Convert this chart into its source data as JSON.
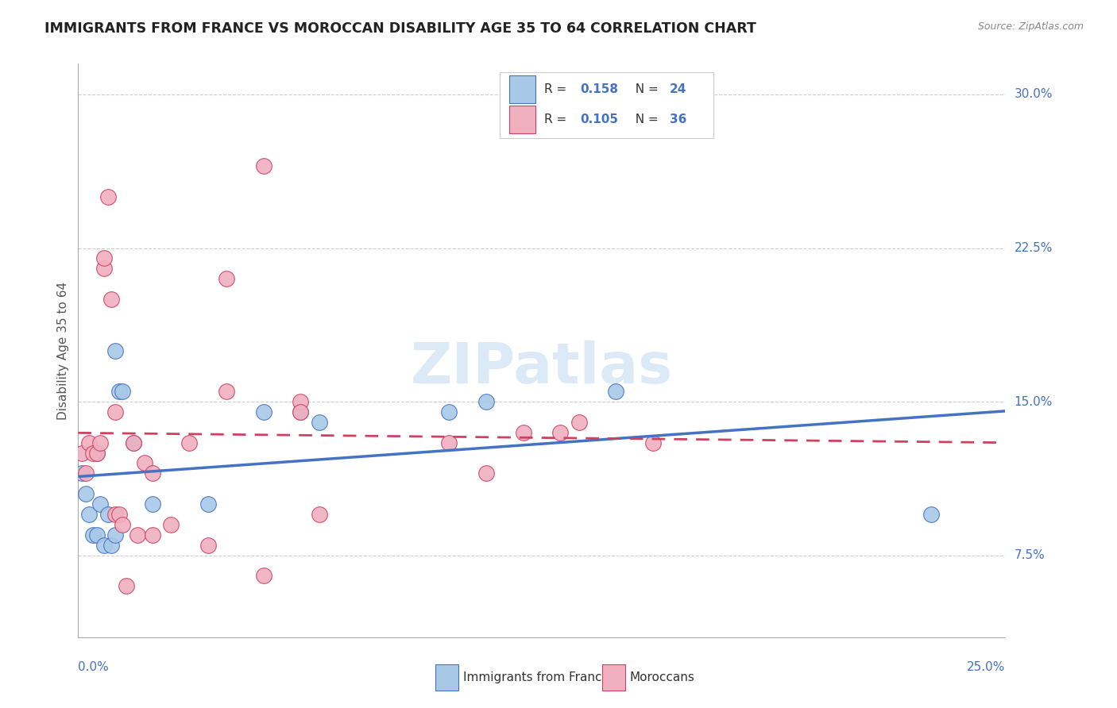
{
  "title": "IMMIGRANTS FROM FRANCE VS MOROCCAN DISABILITY AGE 35 TO 64 CORRELATION CHART",
  "source": "Source: ZipAtlas.com",
  "ylabel": "Disability Age 35 to 64",
  "ytick_labels": [
    "7.5%",
    "15.0%",
    "22.5%",
    "30.0%"
  ],
  "ytick_vals": [
    0.075,
    0.15,
    0.225,
    0.3
  ],
  "xtick_labels": [
    "0.0%",
    "25.0%"
  ],
  "xlim": [
    0.0,
    0.25
  ],
  "ylim": [
    0.035,
    0.315
  ],
  "color_france": "#a8c8e8",
  "color_morocco": "#f0b0c0",
  "color_france_line": "#4472c4",
  "color_morocco_line": "#d04060",
  "watermark": "ZIPatlas",
  "france_x": [
    0.001,
    0.002,
    0.003,
    0.004,
    0.005,
    0.005,
    0.006,
    0.007,
    0.008,
    0.009,
    0.01,
    0.01,
    0.011,
    0.012,
    0.015,
    0.02,
    0.035,
    0.05,
    0.06,
    0.065,
    0.1,
    0.11,
    0.145,
    0.23
  ],
  "france_y": [
    0.115,
    0.105,
    0.095,
    0.085,
    0.125,
    0.085,
    0.1,
    0.08,
    0.095,
    0.08,
    0.085,
    0.175,
    0.155,
    0.155,
    0.13,
    0.1,
    0.1,
    0.145,
    0.145,
    0.14,
    0.145,
    0.15,
    0.155,
    0.095
  ],
  "morocco_x": [
    0.001,
    0.002,
    0.003,
    0.004,
    0.005,
    0.006,
    0.007,
    0.007,
    0.008,
    0.009,
    0.01,
    0.01,
    0.011,
    0.012,
    0.013,
    0.015,
    0.016,
    0.018,
    0.02,
    0.02,
    0.025,
    0.03,
    0.035,
    0.04,
    0.04,
    0.05,
    0.05,
    0.06,
    0.06,
    0.065,
    0.1,
    0.11,
    0.12,
    0.13,
    0.135,
    0.155
  ],
  "morocco_y": [
    0.125,
    0.115,
    0.13,
    0.125,
    0.125,
    0.13,
    0.215,
    0.22,
    0.25,
    0.2,
    0.145,
    0.095,
    0.095,
    0.09,
    0.06,
    0.13,
    0.085,
    0.12,
    0.085,
    0.115,
    0.09,
    0.13,
    0.08,
    0.21,
    0.155,
    0.065,
    0.265,
    0.15,
    0.145,
    0.095,
    0.13,
    0.115,
    0.135,
    0.135,
    0.14,
    0.13
  ]
}
